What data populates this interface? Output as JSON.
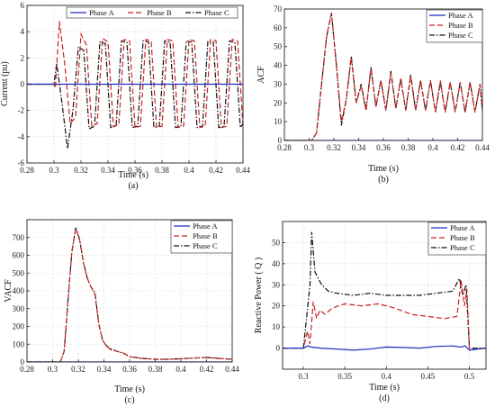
{
  "chart_data": [
    {
      "id": "a",
      "type": "line",
      "caption": "(a)",
      "xlabel": "Time (s)",
      "ylabel": "Current (pu)",
      "xlim": [
        0.28,
        0.44
      ],
      "ylim": [
        -6,
        6
      ],
      "xticks": [
        0.28,
        0.3,
        0.32,
        0.34,
        0.36,
        0.38,
        0.4,
        0.42,
        0.44
      ],
      "xtick_labels": [
        "0.28",
        "0.3",
        "0.32",
        "0.34",
        "0.36",
        "0.38",
        "0.4",
        "0.42",
        "0.44"
      ],
      "yticks": [
        -6,
        -4,
        -2,
        0,
        2,
        4,
        6
      ],
      "ytick_labels": [
        "-6",
        "-4",
        "-2",
        "0",
        "2",
        "4",
        "6"
      ],
      "grid": true,
      "legend": {
        "placement": "top",
        "orientation": "horizontal"
      },
      "series": [
        {
          "name": "Phase A",
          "color": "#1f2fbf",
          "dash": "solid",
          "x": [
            0.28,
            0.3,
            0.44
          ],
          "y": [
            0,
            0,
            0
          ]
        },
        {
          "name": "Phase B",
          "color": "#cc2222",
          "dash": "dashed",
          "x": [
            0.28,
            0.3,
            0.301,
            0.304,
            0.308,
            0.312,
            0.316,
            0.32,
            0.324,
            0.328,
            0.332,
            0.336,
            0.34,
            0.344,
            0.348,
            0.352,
            0.356,
            0.36,
            0.364,
            0.368,
            0.372,
            0.376,
            0.38,
            0.384,
            0.388,
            0.392,
            0.396,
            0.4,
            0.404,
            0.408,
            0.412,
            0.416,
            0.42,
            0.424,
            0.428,
            0.432,
            0.436,
            0.44
          ],
          "y": [
            0,
            0,
            -0.3,
            4.8,
            1.5,
            -3.0,
            -2.5,
            3.8,
            3.0,
            -3.2,
            -3.0,
            3.5,
            3.2,
            -3.2,
            -3.1,
            3.4,
            3.3,
            -3.3,
            -3.2,
            3.4,
            3.3,
            -3.3,
            -3.2,
            3.4,
            3.3,
            -3.3,
            -3.2,
            3.4,
            3.3,
            -3.3,
            -3.2,
            3.4,
            3.3,
            -3.3,
            -3.2,
            3.4,
            3.3,
            -3.2
          ]
        },
        {
          "name": "Phase C",
          "color": "#111111",
          "dash": "dashdot",
          "x": [
            0.28,
            0.3,
            0.302,
            0.306,
            0.31,
            0.314,
            0.318,
            0.322,
            0.326,
            0.33,
            0.334,
            0.338,
            0.342,
            0.346,
            0.35,
            0.354,
            0.358,
            0.362,
            0.366,
            0.37,
            0.374,
            0.378,
            0.382,
            0.386,
            0.39,
            0.394,
            0.398,
            0.402,
            0.406,
            0.41,
            0.414,
            0.418,
            0.422,
            0.426,
            0.43,
            0.434,
            0.438,
            0.44
          ],
          "y": [
            0,
            0,
            1.6,
            -1.5,
            -4.9,
            -2.0,
            2.8,
            2.6,
            -3.4,
            -3.2,
            3.2,
            3.1,
            -3.3,
            -3.2,
            3.3,
            3.2,
            -3.3,
            -3.2,
            3.3,
            3.2,
            -3.3,
            -3.2,
            3.3,
            3.2,
            -3.3,
            -3.2,
            3.3,
            3.2,
            -3.3,
            -3.2,
            3.3,
            3.2,
            -3.3,
            -3.2,
            3.3,
            3.2,
            -3.3,
            -3.0
          ]
        }
      ]
    },
    {
      "id": "b",
      "type": "line",
      "caption": "(b)",
      "xlabel": "Time (s)",
      "ylabel": "ACF",
      "xlim": [
        0.28,
        0.44
      ],
      "ylim": [
        0,
        70
      ],
      "xticks": [
        0.28,
        0.3,
        0.32,
        0.34,
        0.36,
        0.38,
        0.4,
        0.42,
        0.44
      ],
      "xtick_labels": [
        "0.28",
        "0.3",
        "0.32",
        "0.34",
        "0.36",
        "0.38",
        "0.4",
        "0.42",
        "0.44"
      ],
      "yticks": [
        0,
        10,
        20,
        30,
        40,
        50,
        60,
        70
      ],
      "ytick_labels": [
        "0",
        "10",
        "20",
        "30",
        "40",
        "50",
        "60",
        "70"
      ],
      "grid": false,
      "legend": {
        "placement": "top-right",
        "orientation": "vertical"
      },
      "series": [
        {
          "name": "Phase A",
          "color": "#1f2fbf",
          "dash": "solid",
          "x": [
            0.28,
            0.44
          ],
          "y": [
            0,
            0
          ]
        },
        {
          "name": "Phase B",
          "color": "#cc2222",
          "dash": "dashed",
          "x": [
            0.28,
            0.302,
            0.306,
            0.31,
            0.314,
            0.318,
            0.322,
            0.326,
            0.33,
            0.334,
            0.338,
            0.342,
            0.346,
            0.35,
            0.354,
            0.358,
            0.362,
            0.366,
            0.37,
            0.374,
            0.378,
            0.382,
            0.386,
            0.39,
            0.394,
            0.398,
            0.402,
            0.406,
            0.41,
            0.414,
            0.418,
            0.422,
            0.426,
            0.43,
            0.434,
            0.438,
            0.44
          ],
          "y": [
            0,
            0,
            4,
            30,
            55,
            68,
            40,
            10,
            22,
            44,
            20,
            29,
            16,
            38,
            18,
            32,
            16,
            36,
            17,
            33,
            16,
            34,
            16,
            32,
            16,
            32,
            15,
            32,
            15,
            31,
            15,
            31,
            15,
            31,
            15,
            30,
            16
          ]
        },
        {
          "name": "Phase C",
          "color": "#111111",
          "dash": "dashdot",
          "x": [
            0.28,
            0.302,
            0.306,
            0.31,
            0.314,
            0.318,
            0.322,
            0.326,
            0.33,
            0.334,
            0.338,
            0.342,
            0.346,
            0.35,
            0.354,
            0.358,
            0.362,
            0.366,
            0.37,
            0.374,
            0.378,
            0.382,
            0.386,
            0.39,
            0.394,
            0.398,
            0.402,
            0.406,
            0.41,
            0.414,
            0.418,
            0.422,
            0.426,
            0.43,
            0.434,
            0.438,
            0.44
          ],
          "y": [
            0,
            0,
            4,
            30,
            55,
            68,
            40,
            8,
            22,
            45,
            20,
            30,
            16,
            39,
            18,
            32,
            16,
            37,
            17,
            33,
            16,
            35,
            16,
            32,
            16,
            32,
            15,
            31,
            15,
            31,
            15,
            31,
            15,
            31,
            15,
            30,
            16
          ]
        }
      ]
    },
    {
      "id": "c",
      "type": "line",
      "caption": "(c)",
      "xlabel": "Time (s)",
      "ylabel": "VACF",
      "xlim": [
        0.28,
        0.44
      ],
      "ylim": [
        0,
        800
      ],
      "xticks": [
        0.28,
        0.3,
        0.32,
        0.34,
        0.36,
        0.38,
        0.4,
        0.42,
        0.44
      ],
      "xtick_labels": [
        "0.28",
        "0.3",
        "0.32",
        "0.34",
        "0.36",
        "0.38",
        "0.4",
        "0.42",
        "0.44"
      ],
      "yticks": [
        0,
        100,
        200,
        300,
        400,
        500,
        600,
        700
      ],
      "ytick_labels": [
        "0",
        "100",
        "200",
        "300",
        "400",
        "500",
        "600",
        "700"
      ],
      "grid": true,
      "legend": {
        "placement": "top-right",
        "orientation": "vertical"
      },
      "series": [
        {
          "name": "Phase A",
          "color": "#1f2fbf",
          "dash": "solid",
          "x": [
            0.28,
            0.44
          ],
          "y": [
            0,
            0
          ]
        },
        {
          "name": "Phase B",
          "color": "#cc2222",
          "dash": "dashed",
          "x": [
            0.28,
            0.306,
            0.309,
            0.312,
            0.315,
            0.318,
            0.321,
            0.324,
            0.327,
            0.33,
            0.333,
            0.336,
            0.339,
            0.342,
            0.345,
            0.35,
            0.355,
            0.36,
            0.37,
            0.38,
            0.39,
            0.4,
            0.41,
            0.42,
            0.43,
            0.44
          ],
          "y": [
            0,
            0,
            60,
            350,
            620,
            750,
            690,
            560,
            470,
            420,
            380,
            210,
            120,
            90,
            70,
            60,
            50,
            30,
            20,
            15,
            15,
            18,
            22,
            25,
            20,
            15
          ]
        },
        {
          "name": "Phase C",
          "color": "#111111",
          "dash": "dashdot",
          "x": [
            0.28,
            0.306,
            0.309,
            0.312,
            0.315,
            0.318,
            0.321,
            0.324,
            0.327,
            0.33,
            0.333,
            0.336,
            0.339,
            0.342,
            0.345,
            0.35,
            0.355,
            0.36,
            0.37,
            0.38,
            0.39,
            0.4,
            0.41,
            0.42,
            0.43,
            0.44
          ],
          "y": [
            0,
            0,
            60,
            350,
            620,
            755,
            690,
            560,
            470,
            420,
            390,
            215,
            120,
            90,
            75,
            60,
            50,
            30,
            20,
            15,
            15,
            18,
            22,
            26,
            20,
            15
          ]
        }
      ]
    },
    {
      "id": "d",
      "type": "line",
      "caption": "(d)",
      "xlabel": "Time (s)",
      "ylabel": "Reactive Power ( Q )",
      "xlim": [
        0.275,
        0.52
      ],
      "ylim": [
        -10,
        60
      ],
      "xticks": [
        0.3,
        0.35,
        0.4,
        0.45,
        0.5
      ],
      "xtick_labels": [
        "0.3",
        "0.35",
        "0.4",
        "0.45",
        "0.5"
      ],
      "yticks": [
        0,
        10,
        20,
        30,
        40,
        50
      ],
      "ytick_labels": [
        "0",
        "10",
        "20",
        "30",
        "40",
        "50"
      ],
      "grid": true,
      "legend": {
        "placement": "top-right",
        "orientation": "vertical"
      },
      "series": [
        {
          "name": "Phase A",
          "color": "#1f2fbf",
          "dash": "solid",
          "x": [
            0.275,
            0.3,
            0.305,
            0.31,
            0.32,
            0.34,
            0.36,
            0.38,
            0.4,
            0.42,
            0.44,
            0.46,
            0.48,
            0.49,
            0.495,
            0.5,
            0.52
          ],
          "y": [
            0,
            0,
            1,
            0.5,
            0,
            -0.5,
            -1,
            -0.5,
            0.5,
            0.3,
            0,
            0.8,
            1,
            0.5,
            1,
            -1,
            0
          ]
        },
        {
          "name": "Phase B",
          "color": "#cc2222",
          "dash": "dashed",
          "x": [
            0.275,
            0.3,
            0.305,
            0.308,
            0.312,
            0.316,
            0.32,
            0.326,
            0.335,
            0.35,
            0.37,
            0.39,
            0.41,
            0.43,
            0.45,
            0.47,
            0.485,
            0.49,
            0.494,
            0.497,
            0.5,
            0.52
          ],
          "y": [
            0,
            0,
            8,
            2,
            22,
            14,
            18,
            16,
            19,
            21,
            20,
            21,
            19,
            16,
            15,
            14,
            15,
            32,
            20,
            28,
            -1,
            0
          ]
        },
        {
          "name": "Phase C",
          "color": "#111111",
          "dash": "dashdot",
          "x": [
            0.275,
            0.3,
            0.304,
            0.308,
            0.31,
            0.314,
            0.318,
            0.322,
            0.33,
            0.34,
            0.36,
            0.38,
            0.4,
            0.42,
            0.44,
            0.46,
            0.48,
            0.488,
            0.492,
            0.496,
            0.5,
            0.52
          ],
          "y": [
            0,
            0,
            15,
            30,
            55,
            36,
            33,
            30,
            27,
            26,
            25,
            26,
            25,
            25,
            25,
            26,
            27,
            33,
            25,
            30,
            0,
            0
          ]
        }
      ]
    }
  ]
}
